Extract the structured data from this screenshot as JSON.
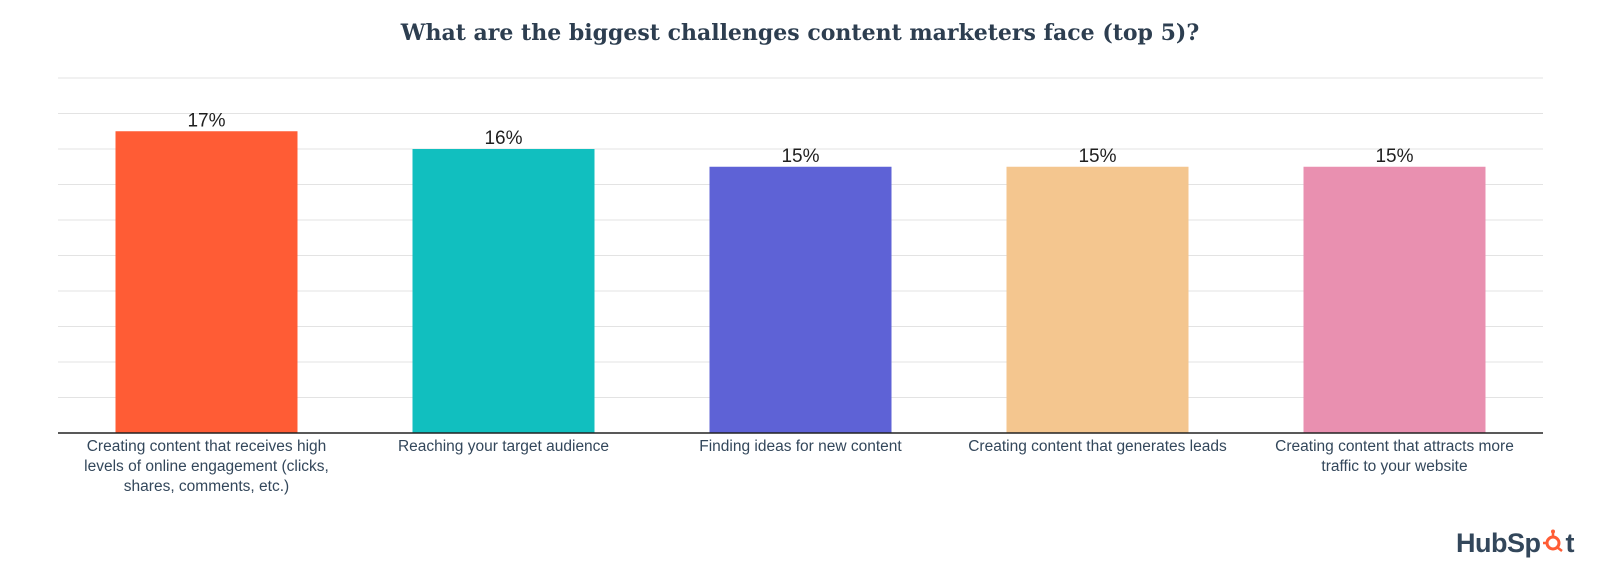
{
  "title": "What are the biggest challenges content marketers face (top 5)?",
  "brand": {
    "text_before": "HubSp",
    "text_after": "t",
    "icon": "hubspot-sprocket-icon",
    "icon_color": "#ff5c35"
  },
  "chart_data": {
    "type": "bar",
    "title": "What are the biggest challenges content marketers face (top 5)?",
    "xlabel": "",
    "ylabel": "",
    "ylim": [
      0,
      20
    ],
    "grid": true,
    "categories": [
      "Creating content that receives high levels of online engagement (clicks, shares, comments, etc.)",
      "Reaching your target audience",
      "Finding ideas for new content",
      "Creating content that generates leads",
      "Creating content that attracts more traffic to your website"
    ],
    "category_lines": [
      [
        "Creating content that receives high",
        "levels of online engagement (clicks,",
        "shares, comments, etc.)"
      ],
      [
        "Reaching your target audience"
      ],
      [
        "Finding ideas for new content"
      ],
      [
        "Creating content that generates leads"
      ],
      [
        "Creating content that attracts more",
        "traffic to your website"
      ]
    ],
    "values": [
      17,
      16,
      15,
      15,
      15
    ],
    "value_labels": [
      "17%",
      "16%",
      "15%",
      "15%",
      "15%"
    ],
    "colors": [
      "#ff5c35",
      "#11bfbf",
      "#5e62d6",
      "#f4c68f",
      "#e990b0"
    ]
  }
}
